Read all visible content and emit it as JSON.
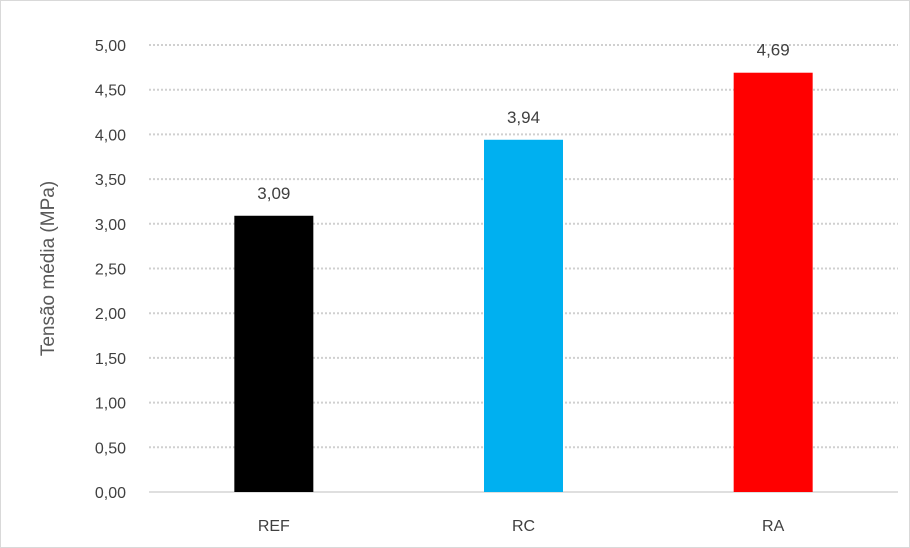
{
  "chart_data": {
    "type": "bar",
    "categories": [
      "REF",
      "RC",
      "RA"
    ],
    "values": [
      3.09,
      3.94,
      4.69
    ],
    "data_labels": [
      "3,09",
      "3,94",
      "4,69"
    ],
    "colors": [
      "#000000",
      "#00b0f0",
      "#ff0000"
    ],
    "ylabel": "Tensão média (MPa)",
    "xlabel": "",
    "ylim": [
      0,
      5
    ],
    "ytick_values": [
      0,
      0.5,
      1,
      1.5,
      2,
      2.5,
      3,
      3.5,
      4,
      4.5,
      5
    ],
    "ytick_labels": [
      "0,00",
      "0,50",
      "1,00",
      "1,50",
      "2,00",
      "2,50",
      "3,00",
      "3,50",
      "4,00",
      "4,50",
      "5,00"
    ],
    "grid": true,
    "grid_style": "dotted",
    "legend": "none"
  }
}
